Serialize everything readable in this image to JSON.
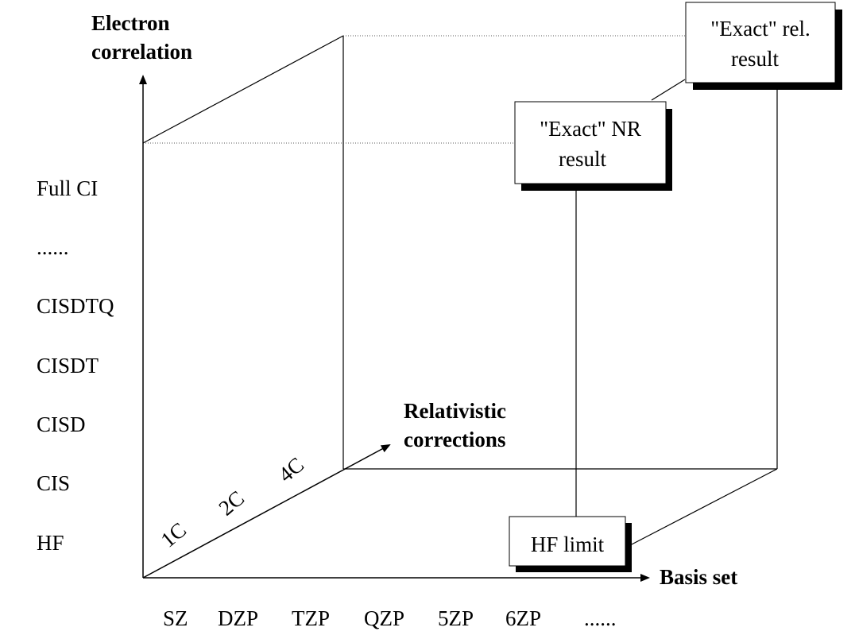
{
  "axes": {
    "y_title_line1": "Electron",
    "y_title_line2": "correlation",
    "x_title": "Basis set",
    "z_title_line1": "Relativistic",
    "z_title_line2": "corrections"
  },
  "correlation_levels": [
    "HF",
    "CIS",
    "CISD",
    "CISDT",
    "CISDTQ",
    "......",
    "Full CI"
  ],
  "basis_sets": [
    "SZ",
    "DZP",
    "TZP",
    "QZP",
    "5ZP",
    "6ZP",
    "......"
  ],
  "relativistic_levels": [
    "1C",
    "2C",
    "4C"
  ],
  "boxes": {
    "hf_limit": "HF limit",
    "exact_nr_line1": "\"Exact\" NR",
    "exact_nr_line2": "result",
    "exact_rel_line1": "\"Exact\" rel.",
    "exact_rel_line2": "result"
  }
}
